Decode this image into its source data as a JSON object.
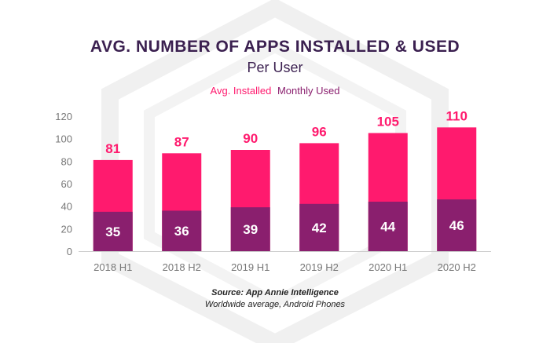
{
  "chart_data": {
    "type": "bar",
    "title": "AVG. NUMBER OF APPS INSTALLED & USED",
    "subtitle": "Per User",
    "categories": [
      "2018 H1",
      "2018 H2",
      "2019 H1",
      "2019 H2",
      "2020 H1",
      "2020 H2"
    ],
    "series": [
      {
        "name": "Avg. Installed",
        "values": [
          81,
          87,
          90,
          96,
          105,
          110
        ],
        "color": "#ff1a6e"
      },
      {
        "name": "Monthly Used",
        "values": [
          35,
          36,
          39,
          42,
          44,
          46
        ],
        "color": "#8a1f6e"
      }
    ],
    "ylim": [
      0,
      120
    ],
    "yticks": [
      0,
      20,
      40,
      60,
      80,
      100,
      120
    ],
    "legend_position": "top-center",
    "grid": false
  },
  "footer": {
    "source": "Source: App Annie Intelligence",
    "note": "Worldwide average, Android Phones"
  },
  "colors": {
    "title": "#3b2050",
    "installed": "#ff1a6e",
    "used": "#8a1f6e",
    "axis_text": "#777777",
    "watermark": "#f0f0f0"
  }
}
